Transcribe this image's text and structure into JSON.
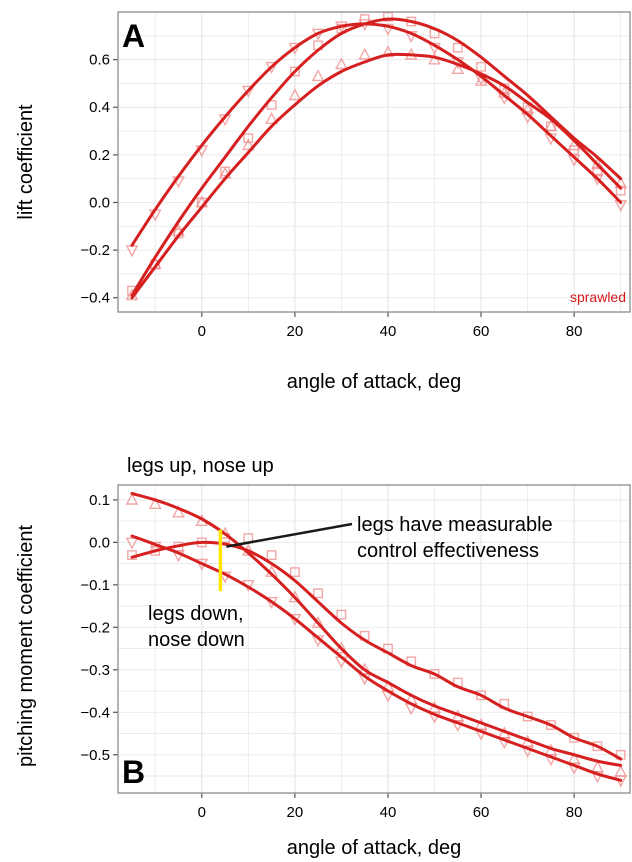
{
  "colors": {
    "series": "#d62020",
    "marker": "#ee8a8a",
    "grid": "#e8e8e8",
    "frame": "#8c8c8c",
    "highlight": "#ffe600"
  },
  "chart_data": [
    {
      "type": "scatter",
      "panel": "A",
      "xlabel": "angle of attack, deg",
      "ylabel": "lift coefficient",
      "xlim": [
        -18,
        92
      ],
      "ylim": [
        -0.46,
        0.8
      ],
      "xticks": [
        0,
        20,
        40,
        60,
        80
      ],
      "yticks": [
        -0.4,
        -0.2,
        0.0,
        0.2,
        0.4,
        0.6
      ],
      "ytick_labels": [
        "−0.4",
        "−0.2",
        "0.0",
        "0.2",
        "0.4",
        "0.6"
      ],
      "grid": true,
      "annotation": "sprawled",
      "series": [
        {
          "marker": "square",
          "x": [
            -15,
            -10,
            -5,
            0,
            5,
            10,
            15,
            20,
            25,
            30,
            35,
            40,
            45,
            50,
            55,
            60,
            65,
            70,
            75,
            80,
            85,
            90
          ],
          "y": [
            -0.37,
            -0.26,
            -0.13,
            0.0,
            0.13,
            0.27,
            0.41,
            0.55,
            0.66,
            0.73,
            0.77,
            0.78,
            0.76,
            0.71,
            0.65,
            0.57,
            0.48,
            0.4,
            0.32,
            0.22,
            0.13,
            0.05
          ]
        },
        {
          "marker": "triangle-down",
          "x": [
            -15,
            -10,
            -5,
            0,
            5,
            10,
            15,
            20,
            25,
            30,
            35,
            40,
            45,
            50,
            55,
            60,
            65,
            70,
            75,
            80,
            85,
            90
          ],
          "y": [
            -0.2,
            -0.05,
            0.09,
            0.22,
            0.35,
            0.47,
            0.57,
            0.65,
            0.71,
            0.74,
            0.75,
            0.73,
            0.7,
            0.65,
            0.59,
            0.52,
            0.44,
            0.36,
            0.27,
            0.18,
            0.1,
            -0.01
          ]
        },
        {
          "marker": "triangle-up",
          "x": [
            -15,
            -10,
            -5,
            0,
            5,
            10,
            15,
            20,
            25,
            30,
            35,
            40,
            45,
            50,
            55,
            60,
            65,
            70,
            75,
            80,
            85,
            90
          ],
          "y": [
            -0.39,
            -0.26,
            -0.12,
            0.0,
            0.12,
            0.24,
            0.35,
            0.45,
            0.53,
            0.58,
            0.62,
            0.63,
            0.62,
            0.6,
            0.56,
            0.51,
            0.46,
            0.39,
            0.32,
            0.24,
            0.16,
            0.08
          ]
        }
      ],
      "fits": [
        {
          "x": [
            -15,
            -10,
            -5,
            0,
            5,
            10,
            15,
            20,
            25,
            30,
            35,
            40,
            45,
            50,
            55,
            60,
            65,
            70,
            75,
            80,
            85,
            90
          ],
          "y": [
            -0.39,
            -0.23,
            -0.08,
            0.06,
            0.19,
            0.32,
            0.44,
            0.55,
            0.64,
            0.71,
            0.75,
            0.77,
            0.76,
            0.73,
            0.68,
            0.61,
            0.53,
            0.45,
            0.36,
            0.27,
            0.19,
            0.1
          ]
        },
        {
          "x": [
            -15,
            -10,
            -5,
            0,
            5,
            10,
            15,
            20,
            25,
            30,
            35,
            40,
            45,
            50,
            55,
            60,
            65,
            70,
            75,
            80,
            85,
            90
          ],
          "y": [
            -0.18,
            -0.03,
            0.11,
            0.24,
            0.36,
            0.47,
            0.57,
            0.65,
            0.71,
            0.74,
            0.75,
            0.74,
            0.71,
            0.66,
            0.6,
            0.53,
            0.45,
            0.37,
            0.28,
            0.19,
            0.1,
            0.0
          ]
        },
        {
          "x": [
            -15,
            -10,
            -5,
            0,
            5,
            10,
            15,
            20,
            25,
            30,
            35,
            40,
            45,
            50,
            55,
            60,
            65,
            70,
            75,
            80,
            85,
            90
          ],
          "y": [
            -0.4,
            -0.27,
            -0.14,
            -0.02,
            0.1,
            0.21,
            0.32,
            0.41,
            0.49,
            0.55,
            0.59,
            0.62,
            0.62,
            0.61,
            0.58,
            0.54,
            0.49,
            0.42,
            0.35,
            0.26,
            0.16,
            0.06
          ]
        }
      ]
    },
    {
      "type": "scatter",
      "panel": "B",
      "xlabel": "angle of attack, deg",
      "ylabel": "pitching moment coefficient",
      "xlim": [
        -18,
        92
      ],
      "ylim": [
        -0.59,
        0.135
      ],
      "xticks": [
        0,
        20,
        40,
        60,
        80
      ],
      "yticks": [
        0.1,
        0.0,
        -0.1,
        -0.2,
        -0.3,
        -0.4,
        -0.5
      ],
      "ytick_labels": [
        "0.1",
        "0.0",
        "−0.1",
        "−0.2",
        "−0.3",
        "−0.4",
        "−0.5"
      ],
      "grid": true,
      "annotations": {
        "top": "legs up, nose up",
        "effect_line1": "legs have measurable",
        "effect_line2": "control effectiveness",
        "bottom_line1": "legs down,",
        "bottom_line2": "nose down"
      },
      "highlight_x": 4,
      "highlight_y": [
        0.03,
        -0.115
      ],
      "series": [
        {
          "marker": "square",
          "x": [
            -15,
            -10,
            -5,
            0,
            5,
            10,
            15,
            20,
            25,
            30,
            35,
            40,
            45,
            50,
            55,
            60,
            65,
            70,
            75,
            80,
            85,
            90
          ],
          "y": [
            -0.03,
            -0.02,
            -0.01,
            0.0,
            0.01,
            0.01,
            -0.03,
            -0.07,
            -0.12,
            -0.17,
            -0.22,
            -0.25,
            -0.28,
            -0.31,
            -0.33,
            -0.36,
            -0.38,
            -0.41,
            -0.43,
            -0.46,
            -0.48,
            -0.5
          ]
        },
        {
          "marker": "triangle-up",
          "x": [
            -15,
            -10,
            -5,
            0,
            5,
            10,
            15,
            20,
            25,
            30,
            35,
            40,
            45,
            50,
            55,
            60,
            65,
            70,
            75,
            80,
            85,
            90
          ],
          "y": [
            0.1,
            0.09,
            0.07,
            0.05,
            0.02,
            -0.02,
            -0.07,
            -0.13,
            -0.19,
            -0.25,
            -0.3,
            -0.34,
            -0.37,
            -0.39,
            -0.41,
            -0.43,
            -0.45,
            -0.47,
            -0.49,
            -0.51,
            -0.53,
            -0.54
          ]
        },
        {
          "marker": "triangle-down",
          "x": [
            -15,
            -10,
            -5,
            0,
            5,
            10,
            15,
            20,
            25,
            30,
            35,
            40,
            45,
            50,
            55,
            60,
            65,
            70,
            75,
            80,
            85,
            90
          ],
          "y": [
            0.0,
            -0.01,
            -0.03,
            -0.05,
            -0.08,
            -0.1,
            -0.14,
            -0.18,
            -0.23,
            -0.28,
            -0.32,
            -0.36,
            -0.39,
            -0.41,
            -0.43,
            -0.45,
            -0.47,
            -0.49,
            -0.51,
            -0.53,
            -0.55,
            -0.56
          ]
        }
      ],
      "fits": [
        {
          "x": [
            -15,
            -10,
            -5,
            0,
            5,
            10,
            15,
            20,
            25,
            30,
            35,
            40,
            45,
            50,
            55,
            60,
            65,
            70,
            75,
            80,
            85,
            90
          ],
          "y": [
            -0.035,
            -0.02,
            -0.008,
            0.0,
            -0.004,
            -0.02,
            -0.05,
            -0.09,
            -0.14,
            -0.19,
            -0.23,
            -0.26,
            -0.29,
            -0.31,
            -0.34,
            -0.36,
            -0.39,
            -0.41,
            -0.43,
            -0.46,
            -0.48,
            -0.51
          ]
        },
        {
          "x": [
            -15,
            -10,
            -5,
            0,
            5,
            10,
            15,
            20,
            25,
            30,
            35,
            40,
            45,
            50,
            55,
            60,
            65,
            70,
            75,
            80,
            85,
            90
          ],
          "y": [
            0.115,
            0.1,
            0.08,
            0.055,
            0.02,
            -0.025,
            -0.075,
            -0.13,
            -0.19,
            -0.25,
            -0.3,
            -0.33,
            -0.36,
            -0.385,
            -0.405,
            -0.425,
            -0.445,
            -0.465,
            -0.485,
            -0.5,
            -0.515,
            -0.525
          ]
        },
        {
          "x": [
            -15,
            -10,
            -5,
            0,
            5,
            10,
            15,
            20,
            25,
            30,
            35,
            40,
            45,
            50,
            55,
            60,
            65,
            70,
            75,
            80,
            85,
            90
          ],
          "y": [
            0.015,
            -0.005,
            -0.025,
            -0.05,
            -0.075,
            -0.105,
            -0.14,
            -0.18,
            -0.225,
            -0.27,
            -0.315,
            -0.35,
            -0.38,
            -0.405,
            -0.425,
            -0.445,
            -0.465,
            -0.485,
            -0.505,
            -0.525,
            -0.545,
            -0.56
          ]
        }
      ]
    }
  ]
}
